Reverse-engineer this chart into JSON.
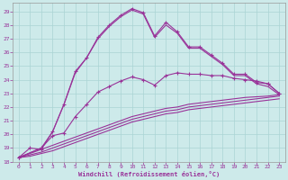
{
  "xlabel": "Windchill (Refroidissement éolien,°C)",
  "background_color": "#cdeaea",
  "line_color": "#993399",
  "grid_color": "#aad4d4",
  "xlim": [
    -0.5,
    23.5
  ],
  "ylim": [
    18,
    29.5
  ],
  "yticks": [
    18,
    19,
    20,
    21,
    22,
    23,
    24,
    25,
    26,
    27,
    28,
    29
  ],
  "xticks": [
    0,
    1,
    2,
    3,
    4,
    5,
    6,
    7,
    8,
    9,
    10,
    11,
    12,
    13,
    14,
    15,
    16,
    17,
    18,
    19,
    20,
    21,
    22,
    23
  ],
  "line1_x": [
    0,
    1,
    2,
    3,
    4,
    5,
    6,
    7,
    8,
    9,
    10,
    11,
    12,
    13,
    14,
    15,
    16,
    17,
    18,
    19,
    20,
    21,
    22,
    23
  ],
  "line1_y": [
    18.3,
    19.0,
    18.9,
    20.2,
    22.2,
    24.6,
    25.6,
    27.1,
    28.0,
    28.7,
    29.2,
    28.9,
    27.2,
    28.2,
    27.5,
    26.4,
    26.4,
    25.8,
    25.2,
    24.4,
    24.4,
    23.8,
    23.7,
    23.0
  ],
  "line2_x": [
    0,
    2,
    3,
    4,
    5,
    6,
    7,
    8,
    9,
    10,
    11,
    12,
    13,
    14,
    15,
    16,
    17,
    18,
    19,
    20,
    21,
    22,
    23
  ],
  "line2_y": [
    18.3,
    19.0,
    20.2,
    22.2,
    24.5,
    25.6,
    27.0,
    27.9,
    28.6,
    29.1,
    28.8,
    27.1,
    28.0,
    27.4,
    26.3,
    26.3,
    25.7,
    25.1,
    24.3,
    24.3,
    23.7,
    23.5,
    22.9
  ],
  "line3_x": [
    0,
    2,
    3,
    4,
    5,
    6,
    7,
    8,
    9,
    10,
    11,
    12,
    13,
    14,
    15,
    16,
    17,
    18,
    19,
    20,
    21,
    22,
    23
  ],
  "line3_y": [
    18.3,
    19.0,
    19.9,
    20.1,
    21.3,
    22.2,
    23.1,
    23.5,
    23.9,
    24.2,
    24.0,
    23.6,
    24.3,
    24.5,
    24.4,
    24.4,
    24.3,
    24.3,
    24.1,
    24.0,
    23.9,
    23.7,
    23.0
  ],
  "line4_x": [
    0,
    23
  ],
  "line4_y": [
    18.3,
    23.0
  ],
  "line5_x": [
    0,
    23
  ],
  "line5_y": [
    18.3,
    23.0
  ],
  "smooth1_x": [
    0,
    1,
    2,
    3,
    4,
    5,
    6,
    7,
    8,
    9,
    10,
    11,
    12,
    13,
    14,
    15,
    16,
    17,
    18,
    19,
    20,
    21,
    22,
    23
  ],
  "smooth1_y": [
    18.3,
    18.6,
    18.9,
    19.2,
    19.5,
    19.8,
    20.1,
    20.4,
    20.7,
    21.0,
    21.3,
    21.5,
    21.7,
    21.9,
    22.0,
    22.2,
    22.3,
    22.4,
    22.5,
    22.6,
    22.7,
    22.75,
    22.8,
    22.9
  ],
  "smooth2_x": [
    0,
    1,
    2,
    3,
    4,
    5,
    6,
    7,
    8,
    9,
    10,
    11,
    12,
    13,
    14,
    15,
    16,
    17,
    18,
    19,
    20,
    21,
    22,
    23
  ],
  "smooth2_y": [
    18.3,
    18.5,
    18.7,
    19.0,
    19.3,
    19.6,
    19.9,
    20.2,
    20.5,
    20.8,
    21.1,
    21.3,
    21.5,
    21.7,
    21.8,
    22.0,
    22.1,
    22.2,
    22.3,
    22.4,
    22.5,
    22.6,
    22.7,
    22.8
  ],
  "smooth3_x": [
    0,
    1,
    2,
    3,
    4,
    5,
    6,
    7,
    8,
    9,
    10,
    11,
    12,
    13,
    14,
    15,
    16,
    17,
    18,
    19,
    20,
    21,
    22,
    23
  ],
  "smooth3_y": [
    18.3,
    18.4,
    18.6,
    18.8,
    19.1,
    19.4,
    19.7,
    20.0,
    20.3,
    20.6,
    20.9,
    21.1,
    21.3,
    21.5,
    21.6,
    21.8,
    21.9,
    22.0,
    22.1,
    22.2,
    22.3,
    22.4,
    22.5,
    22.6
  ]
}
